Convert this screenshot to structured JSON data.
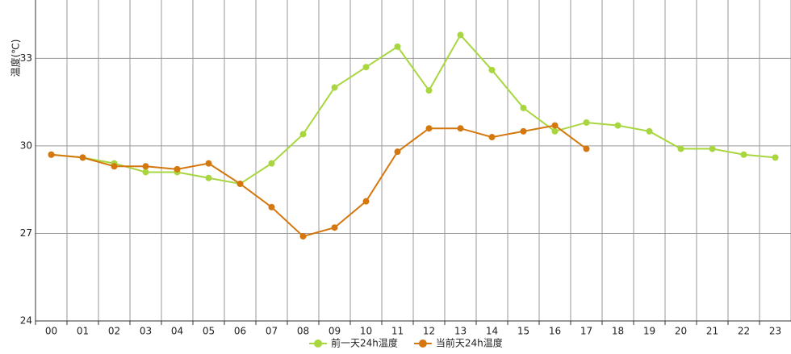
{
  "chart_data": {
    "type": "line",
    "y_label": "温度(℃)",
    "categories": [
      "00",
      "01",
      "02",
      "03",
      "04",
      "05",
      "06",
      "07",
      "08",
      "09",
      "10",
      "11",
      "12",
      "13",
      "14",
      "15",
      "16",
      "17",
      "18",
      "19",
      "20",
      "21",
      "22",
      "23"
    ],
    "series": [
      {
        "name": "前一天24h温度",
        "color": "#a8d63e",
        "values": [
          29.7,
          29.6,
          29.4,
          29.1,
          29.1,
          28.9,
          28.7,
          29.4,
          30.4,
          32.0,
          32.7,
          33.4,
          31.9,
          33.8,
          32.6,
          31.3,
          30.5,
          30.8,
          30.7,
          30.5,
          29.9,
          29.9,
          29.7,
          29.6
        ]
      },
      {
        "name": "当前天24h温度",
        "color": "#d4770e",
        "values": [
          29.7,
          29.6,
          29.3,
          29.3,
          29.2,
          29.4,
          28.7,
          27.9,
          26.9,
          27.2,
          28.1,
          29.8,
          30.6,
          30.6,
          30.3,
          30.5,
          30.7,
          29.9,
          null,
          null,
          null,
          null,
          null,
          null
        ]
      }
    ],
    "ylim": [
      24,
      35
    ],
    "yticks": [
      24,
      27,
      30,
      33
    ],
    "grid": true,
    "legend": "bottom"
  }
}
